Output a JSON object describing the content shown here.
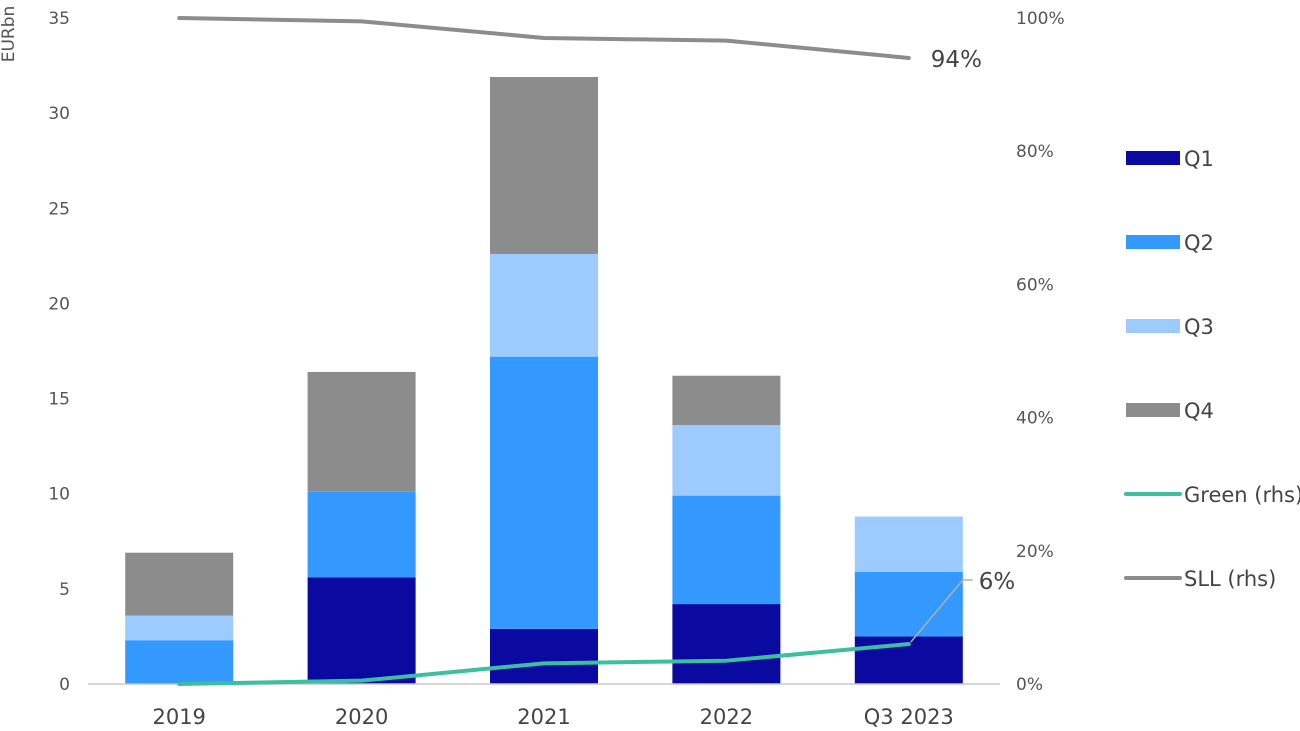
{
  "chart_data": {
    "type": "bar",
    "stacked": true,
    "categories": [
      "2019",
      "2020",
      "2021",
      "2022",
      "Q3 2023"
    ],
    "series": [
      {
        "name": "Q1",
        "values": [
          0.0,
          5.6,
          2.9,
          4.2,
          2.5
        ],
        "color": "#0a0aa0"
      },
      {
        "name": "Q2",
        "values": [
          2.3,
          4.5,
          14.3,
          5.7,
          3.4
        ],
        "color": "#3399ff"
      },
      {
        "name": "Q3",
        "values": [
          1.3,
          0.0,
          5.4,
          3.7,
          2.9
        ],
        "color": "#9dcbff"
      },
      {
        "name": "Q4",
        "values": [
          3.3,
          6.3,
          9.3,
          2.6,
          0.0
        ],
        "color": "#8c8c8c"
      }
    ],
    "lines": [
      {
        "name": "Green (rhs)",
        "axis": "right",
        "values": [
          0.0,
          0.5,
          3.1,
          3.5,
          6.0
        ],
        "color": "#3cbfa0"
      },
      {
        "name": "SLL (rhs)",
        "axis": "right",
        "values": [
          100.0,
          99.5,
          97.0,
          96.6,
          94.0
        ],
        "color": "#8c8c8c"
      }
    ],
    "ylabel": "EURbn",
    "ylim": [
      0,
      35
    ],
    "yticks": [
      "0",
      "5",
      "10",
      "15",
      "20",
      "25",
      "30",
      "35"
    ],
    "y2lim": [
      0,
      100
    ],
    "y2ticks": [
      "0%",
      "20%",
      "40%",
      "60%",
      "80%",
      "100%"
    ],
    "annotations": [
      {
        "series": "SLL (rhs)",
        "text": "94%"
      },
      {
        "series": "Green (rhs)",
        "text": "6%"
      }
    ],
    "legend": "right"
  }
}
